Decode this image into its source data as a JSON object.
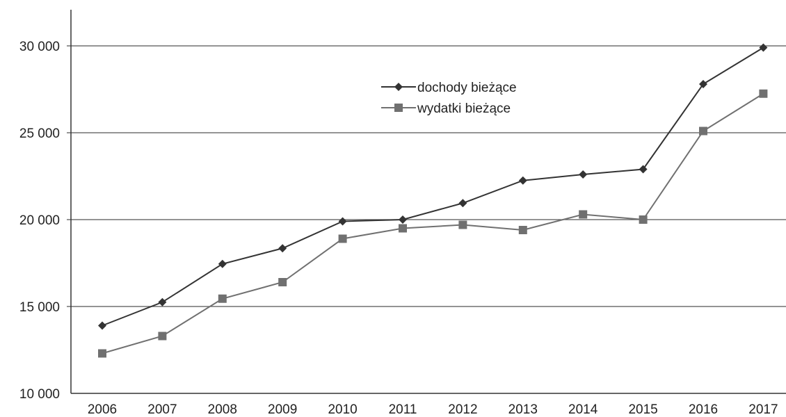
{
  "chart_data": {
    "type": "line",
    "title": "",
    "xlabel": "",
    "ylabel": "",
    "categories": [
      "2006",
      "2007",
      "2008",
      "2009",
      "2010",
      "2011",
      "2012",
      "2013",
      "2014",
      "2015",
      "2016",
      "2017"
    ],
    "series": [
      {
        "name": "dochody bieżące",
        "marker": "diamond",
        "color": "#333333",
        "values": [
          13900,
          15250,
          17450,
          18350,
          19900,
          20000,
          20950,
          22250,
          22600,
          22900,
          27800,
          29900
        ]
      },
      {
        "name": "wydatki bieżące",
        "marker": "square",
        "color": "#707070",
        "values": [
          12300,
          13300,
          15450,
          16400,
          18900,
          19500,
          19700,
          19400,
          20300,
          20000,
          25100,
          27250
        ]
      }
    ],
    "ylim": [
      10000,
      30000
    ],
    "yticks": [
      10000,
      15000,
      20000,
      25000,
      30000
    ],
    "ytick_labels": [
      "10 000",
      "15 000",
      "20 000",
      "25 000",
      "30 000"
    ],
    "grid": "horizontal",
    "legend_position": "top-center"
  }
}
